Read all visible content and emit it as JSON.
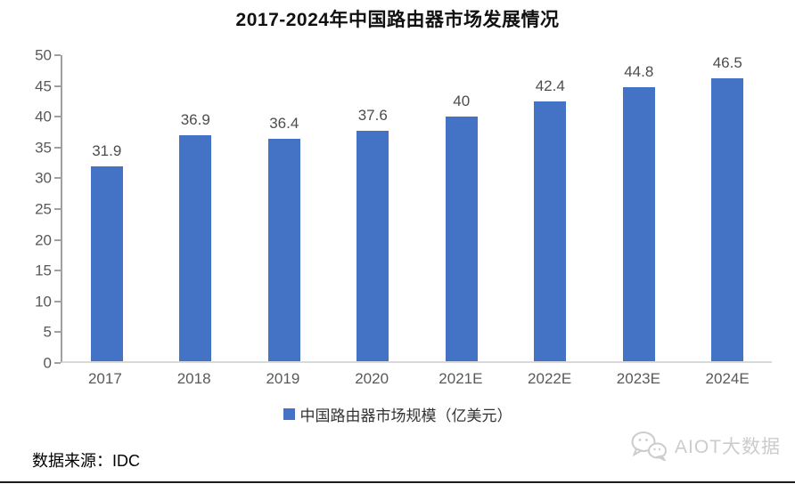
{
  "chart_data": {
    "type": "bar",
    "title": "2017-2024年中国路由器市场发展情况",
    "categories": [
      "2017",
      "2018",
      "2019",
      "2020",
      "2021E",
      "2022E",
      "2023E",
      "2024E"
    ],
    "values": [
      31.9,
      36.9,
      36.4,
      37.6,
      40,
      42.4,
      44.8,
      46.5
    ],
    "series_name": "中国路由器市场规模（亿美元）",
    "xlabel": "",
    "ylabel": "",
    "ylim": [
      0,
      50
    ],
    "ystep": 5,
    "grid": false,
    "legend_position": "bottom",
    "bar_color": "#4472C4",
    "axis_label_color": "#595959",
    "value_label_color": "#4d4d4d"
  },
  "legend": {
    "marker_color": "#4472C4",
    "label": "中国路由器市场规模（亿美元）"
  },
  "footer": {
    "source": "数据来源：IDC",
    "brand": "AIOT大数据",
    "brand_color": "#cccccc"
  }
}
